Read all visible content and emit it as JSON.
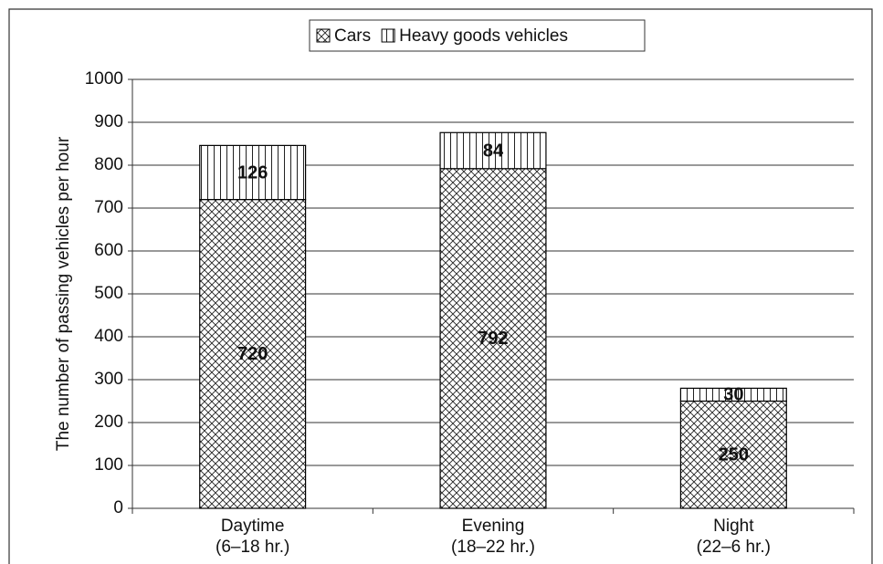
{
  "chart_data": {
    "type": "stacked_bar",
    "y_label": "The number of passing vehicles per hour",
    "categories": [
      [
        "Daytime",
        "(6–18 hr.)"
      ],
      [
        "Evening",
        "(18–22 hr.)"
      ],
      [
        "Night",
        "(22–6 hr.)"
      ]
    ],
    "series": [
      {
        "name": "Cars",
        "color": "#000000",
        "hatch": "crosshatch",
        "values": [
          720,
          792,
          250
        ]
      },
      {
        "name": "Heavy goods vehicles",
        "color": "#000000",
        "hatch": "vertical",
        "values": [
          126,
          84,
          30
        ]
      }
    ],
    "ylim": [
      0,
      1000
    ],
    "yticks": [
      0,
      100,
      200,
      300,
      400,
      500,
      600,
      700,
      800,
      900,
      1000
    ],
    "grid": true,
    "legend": "top"
  }
}
